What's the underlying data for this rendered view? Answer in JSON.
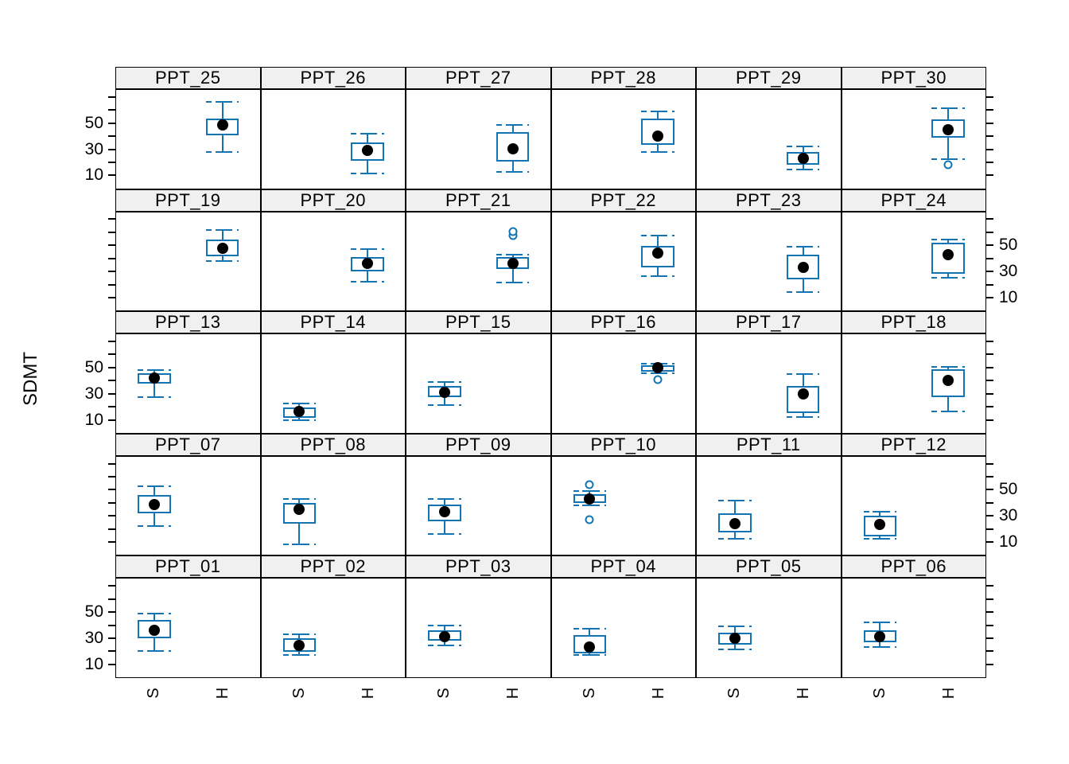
{
  "figure": {
    "colors": {
      "box": "#1274b2",
      "median_dot": "#000000",
      "strip_background": "#f0f0f0",
      "panel_border": "#000000",
      "text": "#000000"
    }
  },
  "chart_data": {
    "type": "boxplot",
    "title": "",
    "ylabel": "SDMT",
    "x_categories": [
      "S",
      "H"
    ],
    "y_ticks": [
      10,
      20,
      30,
      40,
      50,
      60,
      70
    ],
    "y_label_ticks": [
      10,
      30,
      50
    ],
    "ylim": [
      0,
      76
    ],
    "grid": "off",
    "layout": {
      "rows": 5,
      "cols": 6,
      "left_labeled_rows": [
        0,
        2,
        4
      ],
      "right_labeled_rows": [
        1,
        3
      ]
    },
    "panels": [
      {
        "label": "PPT_25",
        "group": "H",
        "low": 28,
        "q1": 41,
        "median": 49,
        "q3": 54,
        "high": 67,
        "outliers": []
      },
      {
        "label": "PPT_26",
        "group": "H",
        "low": 11,
        "q1": 21,
        "median": 29,
        "q3": 35,
        "high": 42,
        "outliers": []
      },
      {
        "label": "PPT_27",
        "group": "H",
        "low": 12,
        "q1": 20,
        "median": 30,
        "q3": 43,
        "high": 49,
        "outliers": []
      },
      {
        "label": "PPT_28",
        "group": "H",
        "low": 28,
        "q1": 33,
        "median": 40,
        "q3": 54,
        "high": 59,
        "outliers": []
      },
      {
        "label": "PPT_29",
        "group": "H",
        "low": 14,
        "q1": 18,
        "median": 23,
        "q3": 28,
        "high": 32,
        "outliers": []
      },
      {
        "label": "PPT_30",
        "group": "H",
        "low": 22,
        "q1": 39,
        "median": 45,
        "q3": 53,
        "high": 62,
        "outliers": [
          18
        ]
      },
      {
        "label": "PPT_19",
        "group": "H",
        "low": 38,
        "q1": 42,
        "median": 48,
        "q3": 55,
        "high": 62,
        "outliers": []
      },
      {
        "label": "PPT_20",
        "group": "H",
        "low": 22,
        "q1": 30,
        "median": 36,
        "q3": 41,
        "high": 47,
        "outliers": []
      },
      {
        "label": "PPT_21",
        "group": "H",
        "low": 21,
        "q1": 32,
        "median": 36,
        "q3": 41,
        "high": 43,
        "outliers": [
          58,
          61
        ]
      },
      {
        "label": "PPT_22",
        "group": "H",
        "low": 26,
        "q1": 33,
        "median": 44,
        "q3": 50,
        "high": 58,
        "outliers": []
      },
      {
        "label": "PPT_23",
        "group": "H",
        "low": 14,
        "q1": 24,
        "median": 33,
        "q3": 43,
        "high": 49,
        "outliers": []
      },
      {
        "label": "PPT_24",
        "group": "H",
        "low": 25,
        "q1": 28,
        "median": 43,
        "q3": 52,
        "high": 55,
        "outliers": []
      },
      {
        "label": "PPT_13",
        "group": "S",
        "low": 27,
        "q1": 38,
        "median": 42,
        "q3": 46,
        "high": 48,
        "outliers": []
      },
      {
        "label": "PPT_14",
        "group": "S",
        "low": 9,
        "q1": 11,
        "median": 16,
        "q3": 19,
        "high": 22,
        "outliers": []
      },
      {
        "label": "PPT_15",
        "group": "S",
        "low": 21,
        "q1": 27,
        "median": 31,
        "q3": 36,
        "high": 39,
        "outliers": []
      },
      {
        "label": "PPT_16",
        "group": "H",
        "low": 46,
        "q1": 47,
        "median": 50,
        "q3": 52,
        "high": 53,
        "outliers": [
          41
        ]
      },
      {
        "label": "PPT_17",
        "group": "H",
        "low": 12,
        "q1": 15,
        "median": 30,
        "q3": 36,
        "high": 45,
        "outliers": []
      },
      {
        "label": "PPT_18",
        "group": "H",
        "low": 16,
        "q1": 27,
        "median": 40,
        "q3": 49,
        "high": 51,
        "outliers": []
      },
      {
        "label": "PPT_07",
        "group": "S",
        "low": 22,
        "q1": 32,
        "median": 39,
        "q3": 46,
        "high": 53,
        "outliers": []
      },
      {
        "label": "PPT_08",
        "group": "S",
        "low": 8,
        "q1": 24,
        "median": 35,
        "q3": 40,
        "high": 43,
        "outliers": []
      },
      {
        "label": "PPT_09",
        "group": "S",
        "low": 16,
        "q1": 26,
        "median": 33,
        "q3": 39,
        "high": 43,
        "outliers": []
      },
      {
        "label": "PPT_10",
        "group": "S",
        "low": 38,
        "q1": 40,
        "median": 43,
        "q3": 47,
        "high": 49,
        "outliers": [
          54,
          27
        ]
      },
      {
        "label": "PPT_11",
        "group": "S",
        "low": 12,
        "q1": 17,
        "median": 24,
        "q3": 32,
        "high": 42,
        "outliers": []
      },
      {
        "label": "PPT_12",
        "group": "S",
        "low": 12,
        "q1": 14,
        "median": 23,
        "q3": 30,
        "high": 33,
        "outliers": []
      },
      {
        "label": "PPT_01",
        "group": "S",
        "low": 20,
        "q1": 30,
        "median": 36,
        "q3": 44,
        "high": 49,
        "outliers": []
      },
      {
        "label": "PPT_02",
        "group": "S",
        "low": 17,
        "q1": 19,
        "median": 24,
        "q3": 30,
        "high": 33,
        "outliers": []
      },
      {
        "label": "PPT_03",
        "group": "S",
        "low": 24,
        "q1": 28,
        "median": 31,
        "q3": 36,
        "high": 40,
        "outliers": []
      },
      {
        "label": "PPT_04",
        "group": "S",
        "low": 17,
        "q1": 18,
        "median": 23,
        "q3": 32,
        "high": 37,
        "outliers": []
      },
      {
        "label": "PPT_05",
        "group": "S",
        "low": 21,
        "q1": 25,
        "median": 30,
        "q3": 34,
        "high": 39,
        "outliers": []
      },
      {
        "label": "PPT_06",
        "group": "S",
        "low": 23,
        "q1": 27,
        "median": 31,
        "q3": 36,
        "high": 42,
        "outliers": []
      }
    ]
  }
}
